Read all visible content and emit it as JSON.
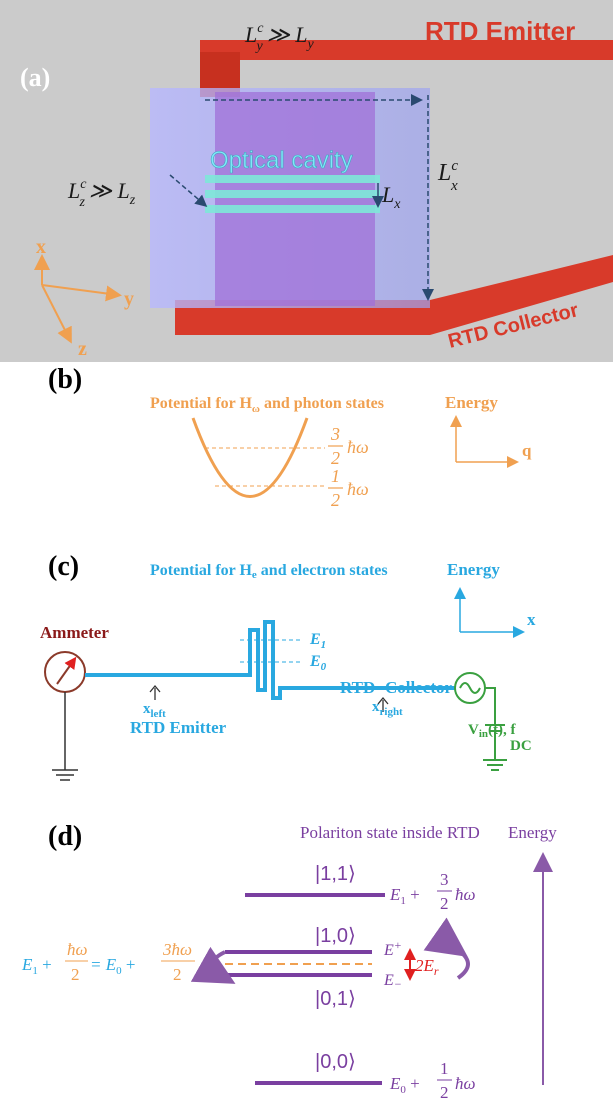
{
  "panel_a": {
    "label": "(a)",
    "emitter": "RTD Emitter",
    "collector": "RTD Collector",
    "cavity": "Optical cavity",
    "axes": [
      "x",
      "y",
      "z"
    ],
    "ly": [
      "L",
      "c",
      "y",
      "≫ L",
      "y"
    ],
    "lz": [
      "L",
      "c",
      "z",
      "≫ L",
      "z"
    ],
    "lx": [
      "L",
      "x"
    ],
    "lxc": [
      "L",
      "c",
      "x"
    ]
  },
  "panel_b": {
    "label": "(b)",
    "title": [
      "Potential for H",
      "ω",
      " and photon states"
    ],
    "energy": "Energy",
    "q": "q",
    "level_3": [
      "3",
      "2",
      "ħω"
    ],
    "level_1": [
      "1",
      "2",
      "ħω"
    ]
  },
  "panel_c": {
    "label": "(c)",
    "title": [
      "Potential for H",
      "e",
      " and electron states"
    ],
    "energy": "Energy",
    "x": "x",
    "ammeter": "Ammeter",
    "e1": [
      "E",
      "1"
    ],
    "e0": [
      "E",
      "0"
    ],
    "rtd": "RTD",
    "collector": "Collector",
    "x_left": [
      "x",
      "left"
    ],
    "emitter": "RTD Emitter",
    "x_right": [
      "x",
      "right"
    ],
    "vin": [
      "V",
      "in",
      "(t), f"
    ],
    "dc": "DC"
  },
  "panel_d": {
    "label": "(d)",
    "title": "Polariton state inside RTD",
    "energy": "Energy",
    "s11": "|1,1⟩",
    "s10": "|1,0⟩",
    "s01": "|0,1⟩",
    "s00": "|0,0⟩",
    "e_top": [
      "E",
      "1",
      " + ",
      "3",
      "2",
      "ħω"
    ],
    "e_plus": [
      "E",
      "+"
    ],
    "e_minus": [
      "E",
      "−"
    ],
    "split": [
      "2E",
      "r"
    ],
    "e_bottom": [
      "E",
      "0",
      " + ",
      "1",
      "2",
      "ħω"
    ],
    "equation": [
      "E",
      "1",
      " + ",
      "ħω",
      "2",
      " = E",
      "0",
      " + ",
      "3ħω",
      "2"
    ]
  }
}
